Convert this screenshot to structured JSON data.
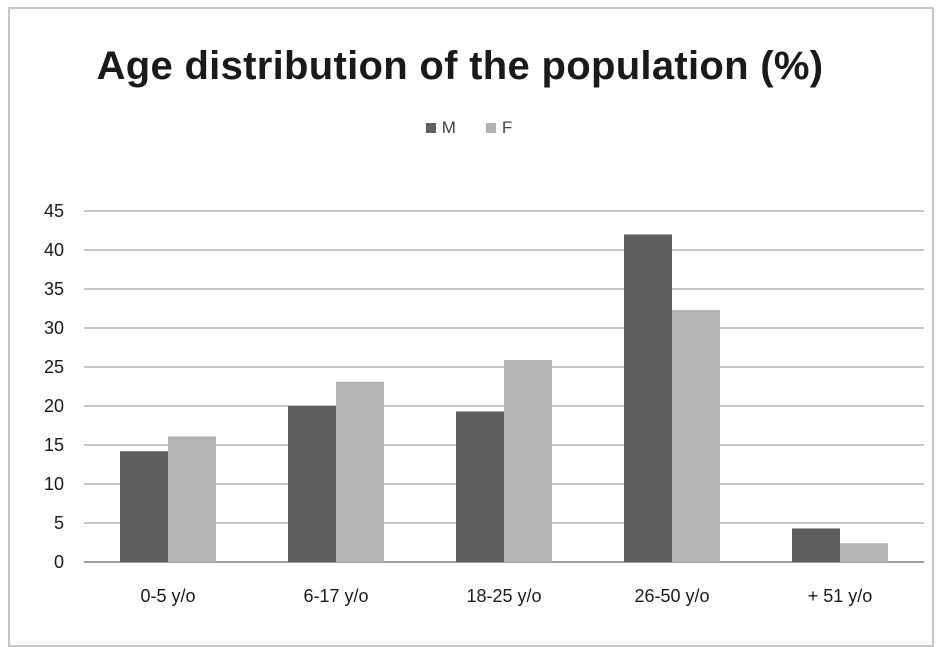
{
  "chart_data": {
    "type": "bar",
    "title": "Age distribution of the population (%)",
    "categories": [
      "0-5 y/o",
      "6-17 y/o",
      "18-25 y/o",
      "26-50 y/o",
      "+ 51 y/o"
    ],
    "series": [
      {
        "name": "M",
        "values": [
          14.2,
          20,
          19.3,
          42,
          4.3
        ],
        "color": "#5f5f5f"
      },
      {
        "name": "F",
        "values": [
          16.1,
          23.1,
          25.9,
          32.3,
          2.4
        ],
        "color": "#b3b3b3"
      }
    ],
    "yticks": [
      0,
      5,
      10,
      15,
      20,
      25,
      30,
      35,
      40,
      45
    ],
    "ylim": [
      0,
      45
    ],
    "grid": true,
    "legend": "top-center",
    "xlabel": "",
    "ylabel": ""
  }
}
